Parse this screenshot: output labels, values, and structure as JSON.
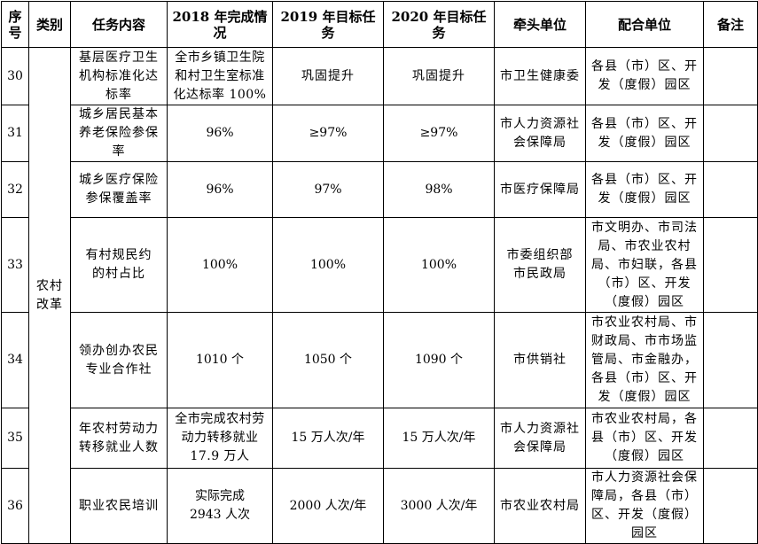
{
  "headers": {
    "seq": "序号",
    "category": "类别",
    "task": "任务内容",
    "y2018": "2018 年完成情况",
    "y2019": "2019 年目标任务",
    "y2020": "2020 年目标任务",
    "lead": "牵头单位",
    "coop": "配合单位",
    "note": "备注"
  },
  "category": "农村改革",
  "rows": [
    {
      "seq": "30",
      "task": "基层医疗卫生机构标准化达标率",
      "y2018": "全市乡镇卫生院和村卫生室标准化达标率 100%",
      "y2019": "巩固提升",
      "y2020": "巩固提升",
      "lead": "市卫生健康委",
      "coop": "各县（市）区、开发（度假）园区",
      "note": ""
    },
    {
      "seq": "31",
      "task": "城乡居民基本养老保险参保率",
      "y2018": "96%",
      "y2019": "≥97%",
      "y2020": "≥97%",
      "lead": "市人力资源社会保障局",
      "coop": "各县（市）区、开发（度假）园区",
      "note": ""
    },
    {
      "seq": "32",
      "task": "城乡医疗保险参保覆盖率",
      "y2018": "96%",
      "y2019": "97%",
      "y2020": "98%",
      "lead": "市医疗保障局",
      "coop": "各县（市）区、开发（度假）园区",
      "note": ""
    },
    {
      "seq": "33",
      "task": "有村规民约的村占比",
      "y2018": "100%",
      "y2019": "100%",
      "y2020": "100%",
      "lead": "市委组织部市民政局",
      "coop": "市文明办、市司法局、市农业农村局、市妇联，各县（市）区、开发（度假）园区",
      "note": ""
    },
    {
      "seq": "34",
      "task": "领办创办农民专业合作社",
      "y2018": "1010 个",
      "y2019": "1050 个",
      "y2020": "1090 个",
      "lead": "市供销社",
      "coop": "市农业农村局、市财政局、市市场监管局、市金融办，各县（市）区、开发（度假）园区",
      "note": ""
    },
    {
      "seq": "35",
      "task": "年农村劳动力转移就业人数",
      "y2018": "全市完成农村劳动力转移就业 17.9 万人",
      "y2019": "15 万人次/年",
      "y2020": "15 万人次/年",
      "lead": "市人力资源社会保障局",
      "coop": "市农业农村局，各县（市）区、开发（度假）园区",
      "note": ""
    },
    {
      "seq": "36",
      "task": "职业农民培训",
      "y2018": "实际完成 2943 人次",
      "y2019": "2000 人次/年",
      "y2020": "3000 人次/年",
      "lead": "市农业农村局",
      "coop": "市人力资源社会保障局，各县（市）区、开发（度假）园区",
      "note": ""
    }
  ]
}
